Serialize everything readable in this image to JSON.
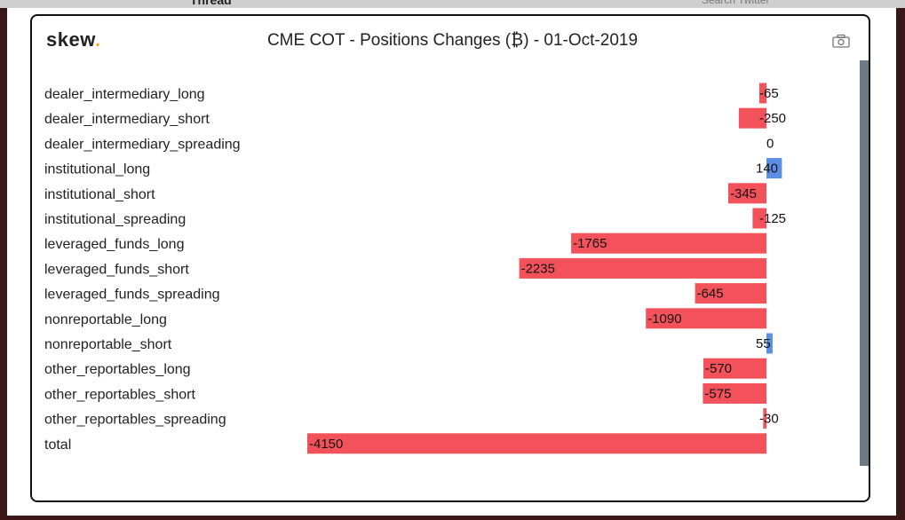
{
  "header": {
    "logo_text": "skew",
    "logo_dot": ".",
    "title": "CME COT - Positions Changes (₿) - 01-Oct-2019",
    "camera_icon": "camera-icon"
  },
  "colors": {
    "negative": "#f4525a",
    "positive": "#5b8fe6",
    "logo_dot": "#f5a623",
    "scrollbar": "#6e7a84"
  },
  "chart_data": {
    "type": "bar",
    "orientation": "horizontal",
    "title": "CME COT - Positions Changes (₿) - 01-Oct-2019",
    "categories": [
      "dealer_intermediary_long",
      "dealer_intermediary_short",
      "dealer_intermediary_spreading",
      "institutional_long",
      "institutional_short",
      "institutional_spreading",
      "leveraged_funds_long",
      "leveraged_funds_short",
      "leveraged_funds_spreading",
      "nonreportable_long",
      "nonreportable_short",
      "other_reportables_long",
      "other_reportables_short",
      "other_reportables_spreading",
      "total"
    ],
    "values": [
      -65,
      -250,
      0,
      140,
      -345,
      -125,
      -1765,
      -2235,
      -645,
      -1090,
      55,
      -570,
      -575,
      -30,
      -4150
    ],
    "grid": false,
    "legend": "none"
  }
}
